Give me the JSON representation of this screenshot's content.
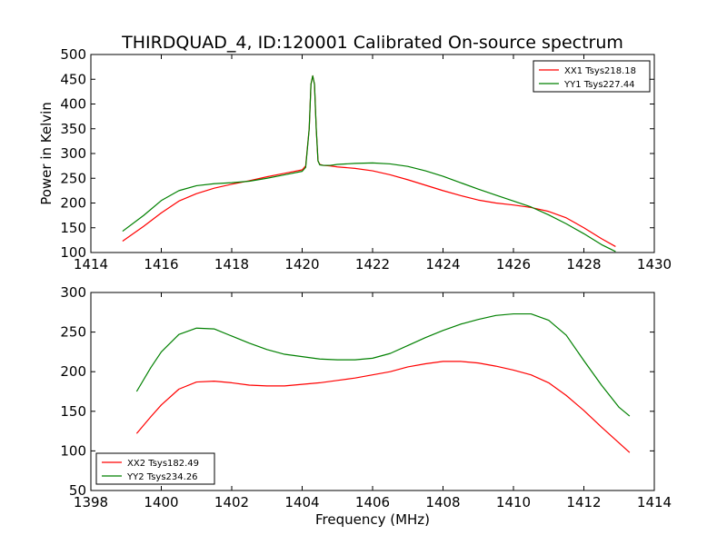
{
  "chart_data": [
    {
      "type": "line",
      "title": "THIRDQUAD_4, ID:120001 Calibrated On-source spectrum",
      "xlabel": "",
      "ylabel": "Power in Kelvin",
      "xlim": [
        1414,
        1430
      ],
      "ylim": [
        100,
        500
      ],
      "xticks": [
        1414,
        1416,
        1418,
        1420,
        1422,
        1424,
        1426,
        1428,
        1430
      ],
      "yticks": [
        100,
        150,
        200,
        250,
        300,
        350,
        400,
        450,
        500
      ],
      "grid": false,
      "legend_position": "top-right",
      "series": [
        {
          "name": "XX1 Tsys218.18",
          "color": "#ff0000",
          "x": [
            1414.9,
            1415.5,
            1416.0,
            1416.5,
            1417.0,
            1417.5,
            1418.0,
            1418.5,
            1419.0,
            1419.5,
            1420.0,
            1420.1,
            1420.2,
            1420.25,
            1420.3,
            1420.35,
            1420.4,
            1420.45,
            1420.5,
            1420.6,
            1420.8,
            1421.0,
            1421.5,
            1422.0,
            1422.5,
            1423.0,
            1423.5,
            1424.0,
            1424.5,
            1425.0,
            1425.5,
            1426.0,
            1426.5,
            1427.0,
            1427.5,
            1428.0,
            1428.5,
            1428.9
          ],
          "y": [
            123,
            153,
            180,
            204,
            219,
            230,
            238,
            245,
            253,
            260,
            267,
            275,
            350,
            440,
            457,
            440,
            350,
            285,
            278,
            276,
            275,
            273,
            270,
            265,
            257,
            247,
            236,
            225,
            215,
            206,
            200,
            196,
            191,
            183,
            170,
            150,
            128,
            112
          ]
        },
        {
          "name": "YY1 Tsys227.44",
          "color": "#008000",
          "x": [
            1414.9,
            1415.5,
            1416.0,
            1416.5,
            1417.0,
            1417.5,
            1418.0,
            1418.5,
            1419.0,
            1419.5,
            1420.0,
            1420.1,
            1420.2,
            1420.25,
            1420.3,
            1420.35,
            1420.4,
            1420.45,
            1420.5,
            1420.6,
            1420.8,
            1421.0,
            1421.5,
            1422.0,
            1422.5,
            1423.0,
            1423.5,
            1424.0,
            1424.5,
            1425.0,
            1425.5,
            1426.0,
            1426.5,
            1427.0,
            1427.5,
            1428.0,
            1428.5,
            1428.9
          ],
          "y": [
            143,
            175,
            205,
            225,
            235,
            239,
            241,
            244,
            250,
            257,
            264,
            272,
            350,
            440,
            457,
            440,
            350,
            285,
            277,
            276,
            276,
            278,
            280,
            281,
            279,
            274,
            265,
            254,
            241,
            228,
            216,
            204,
            192,
            176,
            158,
            138,
            116,
            102
          ]
        }
      ]
    },
    {
      "type": "line",
      "title": "",
      "xlabel": "Frequency (MHz)",
      "ylabel": "",
      "xlim": [
        1398,
        1414
      ],
      "ylim": [
        50,
        300
      ],
      "xticks": [
        1398,
        1400,
        1402,
        1404,
        1406,
        1408,
        1410,
        1412,
        1414
      ],
      "yticks": [
        50,
        100,
        150,
        200,
        250,
        300
      ],
      "grid": false,
      "legend_position": "bottom-left",
      "series": [
        {
          "name": "XX2 Tsys182.49",
          "color": "#ff0000",
          "x": [
            1399.3,
            1399.7,
            1400.0,
            1400.5,
            1401.0,
            1401.5,
            1402.0,
            1402.5,
            1403.0,
            1403.5,
            1404.0,
            1404.5,
            1405.0,
            1405.5,
            1406.0,
            1406.5,
            1407.0,
            1407.5,
            1408.0,
            1408.5,
            1409.0,
            1409.5,
            1410.0,
            1410.5,
            1411.0,
            1411.5,
            1412.0,
            1412.5,
            1413.0,
            1413.3
          ],
          "y": [
            122,
            143,
            158,
            178,
            187,
            188,
            186,
            183,
            182,
            182,
            184,
            186,
            189,
            192,
            196,
            200,
            206,
            210,
            213,
            213,
            211,
            207,
            202,
            196,
            186,
            170,
            151,
            130,
            110,
            98
          ]
        },
        {
          "name": "YY2 Tsys234.26",
          "color": "#008000",
          "x": [
            1399.3,
            1399.7,
            1400.0,
            1400.5,
            1401.0,
            1401.5,
            1402.0,
            1402.5,
            1403.0,
            1403.5,
            1404.0,
            1404.5,
            1405.0,
            1405.5,
            1406.0,
            1406.5,
            1407.0,
            1407.5,
            1408.0,
            1408.5,
            1409.0,
            1409.5,
            1410.0,
            1410.5,
            1411.0,
            1411.5,
            1412.0,
            1412.5,
            1413.0,
            1413.3
          ],
          "y": [
            175,
            205,
            225,
            247,
            255,
            254,
            245,
            236,
            228,
            222,
            219,
            216,
            215,
            215,
            217,
            223,
            233,
            243,
            252,
            260,
            266,
            271,
            273,
            273,
            265,
            246,
            214,
            183,
            155,
            144
          ]
        }
      ]
    }
  ]
}
